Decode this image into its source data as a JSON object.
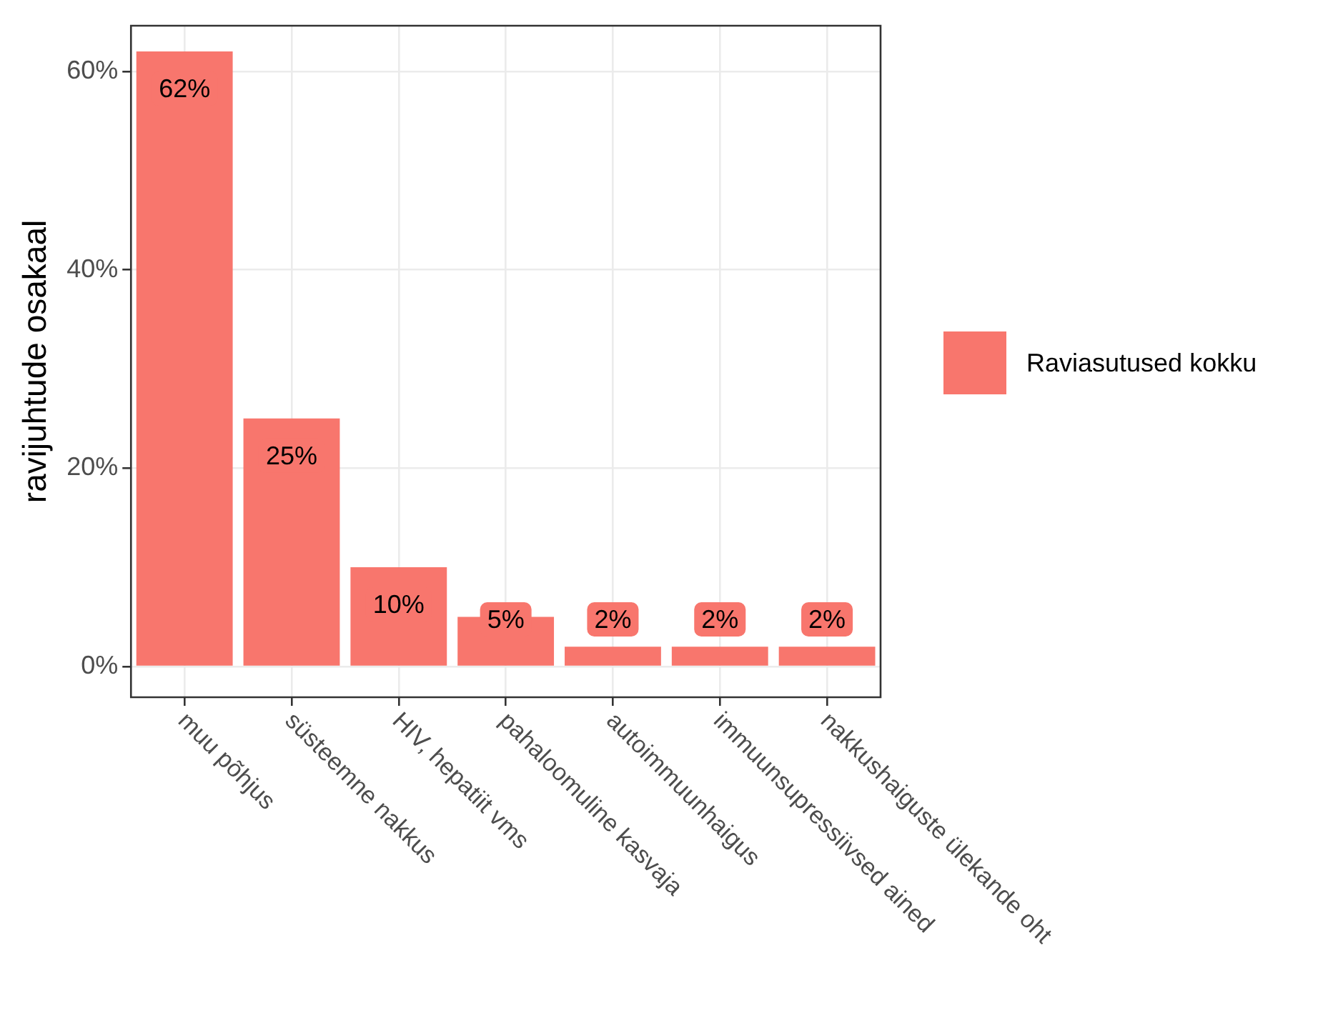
{
  "chart_data": {
    "type": "bar",
    "ylabel": "ravijuhtude osakaal",
    "categories": [
      "muu põhjus",
      "süsteemne nakkus",
      "HIV, hepatiit vms",
      "pahaloomuline kasvaja",
      "autoimmuunhaigus",
      "immuunsupressiivsed ained",
      "nakkushaiguste ülekande oht"
    ],
    "series": [
      {
        "name": "Raviasutused kokku",
        "color": "#f8766d",
        "values": [
          62,
          25,
          10,
          5,
          2,
          2,
          2
        ],
        "value_labels": [
          "62%",
          "25%",
          "10%",
          "5%",
          "2%",
          "2%",
          "2%"
        ]
      }
    ],
    "ylim": [
      -3.1,
      64.6
    ],
    "yticks": [
      {
        "value": 0,
        "label": "0%"
      },
      {
        "value": 20,
        "label": "20%"
      },
      {
        "value": 40,
        "label": "40%"
      },
      {
        "value": 60,
        "label": "60%"
      }
    ],
    "grid": true,
    "legend": "right"
  }
}
